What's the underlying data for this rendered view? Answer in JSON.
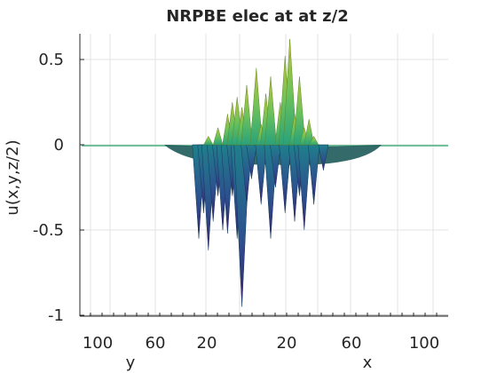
{
  "chart_data": {
    "type": "surface",
    "title": "NRPBE elec at at z/2",
    "ylabel": "u(x,y,z/2)",
    "y_axis_label": "y",
    "x_axis_label": "x",
    "zlim": [
      -1,
      0.65
    ],
    "z_ticks": [
      {
        "value": 0.5,
        "label": "0.5"
      },
      {
        "value": 0,
        "label": "0"
      },
      {
        "value": -0.5,
        "label": "-0.5"
      },
      {
        "value": -1,
        "label": "-1"
      }
    ],
    "y_ticks": [
      "100",
      "60",
      "20"
    ],
    "x_ticks": [
      "20",
      "60",
      "100"
    ],
    "grid": true,
    "colormap": [
      "#3b1f6e",
      "#2d4f8e",
      "#1f7f8c",
      "#2aa27a",
      "#6ec35a",
      "#c8c133"
    ],
    "peaks": [
      {
        "pos": 0.2,
        "z": -0.55
      },
      {
        "pos": 0.22,
        "z": -0.4
      },
      {
        "pos": 0.24,
        "z": -0.62
      },
      {
        "pos": 0.26,
        "z": -0.45
      },
      {
        "pos": 0.28,
        "z": -0.3
      },
      {
        "pos": 0.3,
        "z": -0.5
      },
      {
        "pos": 0.32,
        "z": -0.52
      },
      {
        "pos": 0.34,
        "z": -0.3
      },
      {
        "pos": 0.36,
        "z": -0.55
      },
      {
        "pos": 0.38,
        "z": -0.95
      },
      {
        "pos": 0.4,
        "z": -0.35
      },
      {
        "pos": 0.42,
        "z": -0.2
      },
      {
        "pos": 0.46,
        "z": -0.35
      },
      {
        "pos": 0.5,
        "z": -0.55
      },
      {
        "pos": 0.52,
        "z": -0.25
      },
      {
        "pos": 0.56,
        "z": -0.4
      },
      {
        "pos": 0.6,
        "z": -0.45
      },
      {
        "pos": 0.62,
        "z": -0.3
      },
      {
        "pos": 0.64,
        "z": -0.5
      },
      {
        "pos": 0.68,
        "z": -0.35
      },
      {
        "pos": 0.72,
        "z": -0.15
      },
      {
        "pos": 0.24,
        "z": 0.05
      },
      {
        "pos": 0.28,
        "z": 0.1
      },
      {
        "pos": 0.32,
        "z": 0.18
      },
      {
        "pos": 0.34,
        "z": 0.25
      },
      {
        "pos": 0.36,
        "z": 0.28
      },
      {
        "pos": 0.38,
        "z": 0.22
      },
      {
        "pos": 0.4,
        "z": 0.35
      },
      {
        "pos": 0.44,
        "z": 0.45
      },
      {
        "pos": 0.46,
        "z": 0.12
      },
      {
        "pos": 0.48,
        "z": 0.3
      },
      {
        "pos": 0.5,
        "z": 0.4
      },
      {
        "pos": 0.54,
        "z": 0.25
      },
      {
        "pos": 0.56,
        "z": 0.52
      },
      {
        "pos": 0.58,
        "z": 0.62
      },
      {
        "pos": 0.6,
        "z": 0.18
      },
      {
        "pos": 0.62,
        "z": 0.4
      },
      {
        "pos": 0.64,
        "z": 0.1
      },
      {
        "pos": 0.66,
        "z": 0.15
      },
      {
        "pos": 0.68,
        "z": 0.05
      }
    ]
  }
}
